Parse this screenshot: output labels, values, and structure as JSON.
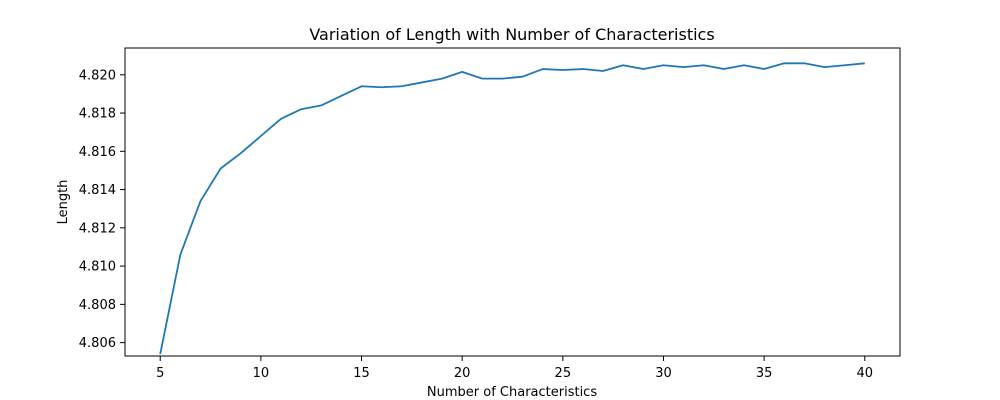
{
  "chart_data": {
    "type": "line",
    "title": "Variation of Length with Number of Characteristics",
    "xlabel": "Number of Characteristics",
    "ylabel": "Length",
    "xlim": [
      3.25,
      41.75
    ],
    "ylim": [
      4.8053,
      4.8214
    ],
    "xticks": [
      5,
      10,
      15,
      20,
      25,
      30,
      35,
      40
    ],
    "yticks": [
      4.806,
      4.808,
      4.81,
      4.812,
      4.814,
      4.816,
      4.818,
      4.82
    ],
    "ytick_labels": [
      "4.806",
      "4.808",
      "4.810",
      "4.812",
      "4.814",
      "4.816",
      "4.818",
      "4.820"
    ],
    "grid": false,
    "series": [
      {
        "color": "#1f77b4",
        "x": [
          5,
          6,
          7,
          8,
          9,
          10,
          11,
          12,
          13,
          14,
          15,
          16,
          17,
          18,
          19,
          20,
          21,
          22,
          23,
          24,
          25,
          26,
          27,
          28,
          29,
          30,
          31,
          32,
          33,
          34,
          35,
          36,
          37,
          38,
          39,
          40
        ],
        "y": [
          4.8054,
          4.8106,
          4.8134,
          4.8151,
          4.8159,
          4.8168,
          4.8177,
          4.8182,
          4.8184,
          4.8189,
          4.8194,
          4.81935,
          4.8194,
          4.8196,
          4.8198,
          4.82015,
          4.8198,
          4.8198,
          4.8199,
          4.8203,
          4.82025,
          4.8203,
          4.8202,
          4.8205,
          4.8203,
          4.8205,
          4.8204,
          4.8205,
          4.8203,
          4.8205,
          4.8203,
          4.8206,
          4.8206,
          4.8204,
          4.8205,
          4.8206
        ]
      }
    ]
  }
}
